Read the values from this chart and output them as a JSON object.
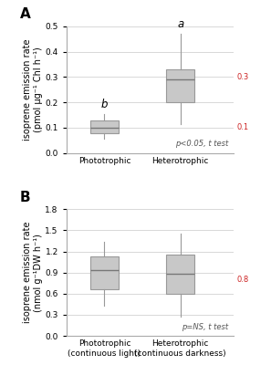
{
  "panel_A": {
    "title": "A",
    "ylabel": "isoprene emission rate\n(pmol μg⁻¹ Chl h⁻¹)",
    "ylim": [
      0,
      0.5
    ],
    "yticks": [
      0.0,
      0.1,
      0.2,
      0.3,
      0.4,
      0.5
    ],
    "categories": [
      "Phototrophic",
      "Heterotrophic"
    ],
    "boxes": [
      {
        "median": 0.1,
        "q1": 0.08,
        "q3": 0.13,
        "whislo": 0.055,
        "whishi": 0.155
      },
      {
        "median": 0.29,
        "q1": 0.2,
        "q3": 0.33,
        "whislo": 0.115,
        "whishi": 0.47
      }
    ],
    "letters": [
      "b",
      "a"
    ],
    "red_hlines": [
      0.3,
      0.1
    ],
    "red_hline_labels": [
      "0.3",
      "0.1"
    ],
    "stat_text": "p<0.05, t test",
    "box_color": "#c8c8c8",
    "box_width": 0.38
  },
  "panel_B": {
    "title": "B",
    "ylabel": "isoprene emission rate\n(nmol g⁻¹DW h⁻¹)",
    "ylim": [
      0,
      1.8
    ],
    "yticks": [
      0.0,
      0.3,
      0.6,
      0.9,
      1.2,
      1.5,
      1.8
    ],
    "categories": [
      "Phototrophic\n(continuous light)",
      "Heterotrophic\n(continuous darkness)"
    ],
    "boxes": [
      {
        "median": 0.93,
        "q1": 0.66,
        "q3": 1.13,
        "whislo": 0.43,
        "whishi": 1.34
      },
      {
        "median": 0.88,
        "q1": 0.6,
        "q3": 1.16,
        "whislo": 0.27,
        "whishi": 1.45
      }
    ],
    "letters": [
      null,
      null
    ],
    "red_hlines": [
      0.8
    ],
    "red_hline_labels": [
      "0.8"
    ],
    "stat_text": "p=NS, t test",
    "box_color": "#c8c8c8",
    "box_width": 0.38
  },
  "figure_bg": "#ffffff",
  "grid_color": "#d8d8d8",
  "red_color": "#cc2222",
  "tick_fontsize": 6.5,
  "label_fontsize": 7,
  "letter_fontsize": 8.5,
  "stat_fontsize": 6,
  "title_fontsize": 11
}
